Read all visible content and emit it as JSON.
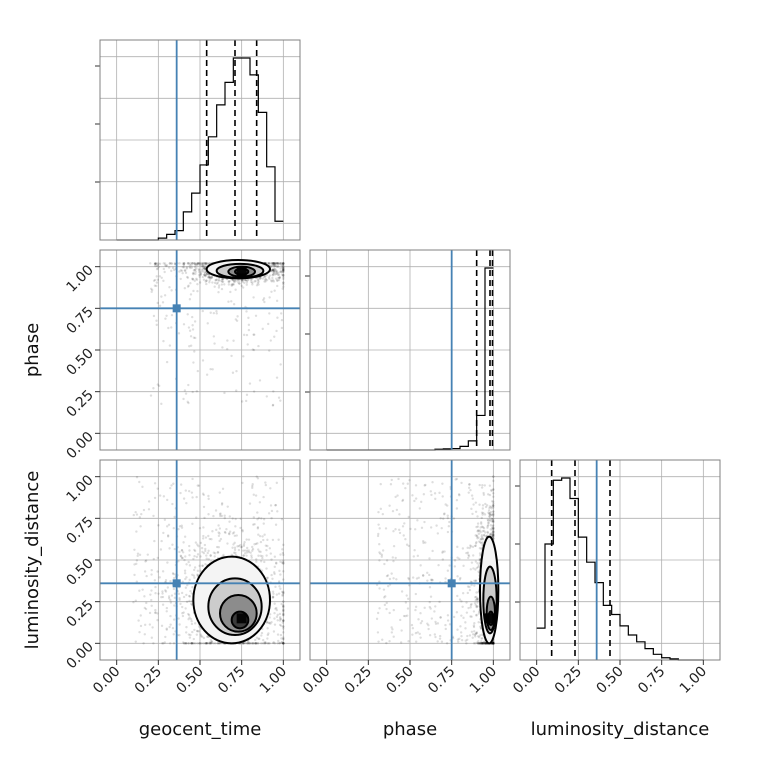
{
  "chart_data": {
    "type": "corner",
    "parameters": [
      "geocent_time",
      "phase",
      "luminosity_distance"
    ],
    "axis_ticks": [
      "0.00",
      "0.25",
      "0.50",
      "0.75",
      "1.00"
    ],
    "axis_range": [
      -0.1,
      1.1
    ],
    "truths": {
      "geocent_time": 0.36,
      "phase": 0.75,
      "luminosity_distance": 0.36
    },
    "truth_color": "#4682b4",
    "histogram_bin_edges": [
      0.0,
      0.05,
      0.1,
      0.15,
      0.2,
      0.25,
      0.3,
      0.35,
      0.4,
      0.45,
      0.5,
      0.55,
      0.6,
      0.65,
      0.7,
      0.75,
      0.8,
      0.85,
      0.9,
      0.95,
      1.0
    ],
    "histograms": {
      "geocent_time": {
        "counts": [
          0,
          0,
          0,
          0,
          0,
          1,
          3,
          5,
          15,
          25,
          40,
          55,
          72,
          84,
          97,
          97,
          88,
          68,
          39,
          10
        ],
        "quantiles": [
          0.54,
          0.71,
          0.84
        ]
      },
      "phase": {
        "counts": [
          0,
          0,
          0,
          0,
          0,
          0,
          0,
          0,
          0,
          0,
          0,
          0,
          0,
          0.4,
          0.6,
          0.8,
          2,
          5,
          19,
          100
        ],
        "quantiles": [
          0.9,
          0.98,
          0.995
        ]
      },
      "luminosity_distance": {
        "counts": [
          14,
          51,
          79,
          80,
          71,
          54,
          43,
          34,
          24,
          20,
          15,
          11,
          8,
          5,
          2.5,
          1,
          0.5,
          0,
          0,
          0
        ],
        "quantiles": [
          0.09,
          0.23,
          0.44
        ]
      }
    },
    "two_d": [
      {
        "x": "geocent_time",
        "y": "phase",
        "density_peak": [
          0.75,
          0.97
        ],
        "scatter_extent": {
          "x": [
            0.2,
            1.0
          ],
          "y": [
            0.15,
            1.02
          ]
        },
        "contour_levels": [
          0.5,
          1.0,
          1.5,
          2.0
        ],
        "contours": [
          {
            "cx": 0.73,
            "cy": 0.985,
            "rx": 0.19,
            "ry": 0.055
          },
          {
            "cx": 0.74,
            "cy": 0.975,
            "rx": 0.14,
            "ry": 0.042
          },
          {
            "cx": 0.75,
            "cy": 0.97,
            "rx": 0.08,
            "ry": 0.03
          },
          {
            "cx": 0.75,
            "cy": 0.97,
            "rx": 0.04,
            "ry": 0.018
          }
        ]
      },
      {
        "x": "geocent_time",
        "y": "luminosity_distance",
        "density_peak": [
          0.75,
          0.15
        ],
        "scatter_extent": {
          "x": [
            0.1,
            1.0
          ],
          "y": [
            0.0,
            1.0
          ]
        },
        "contour_levels": [
          0.5,
          1.0,
          1.5,
          2.0
        ],
        "contours": [
          {
            "cx": 0.69,
            "cy": 0.26,
            "rx": 0.23,
            "ry": 0.26
          },
          {
            "cx": 0.71,
            "cy": 0.22,
            "rx": 0.16,
            "ry": 0.17
          },
          {
            "cx": 0.73,
            "cy": 0.18,
            "rx": 0.11,
            "ry": 0.11
          },
          {
            "cx": 0.74,
            "cy": 0.14,
            "rx": 0.05,
            "ry": 0.05
          }
        ]
      },
      {
        "x": "phase",
        "y": "luminosity_distance",
        "density_peak": [
          0.98,
          0.15
        ],
        "scatter_extent": {
          "x": [
            0.3,
            1.0
          ],
          "y": [
            0.0,
            1.0
          ]
        },
        "contour_levels": [
          0.5,
          1.0,
          1.5,
          2.0
        ],
        "contours": [
          {
            "cx": 0.975,
            "cy": 0.32,
            "rx": 0.055,
            "ry": 0.32
          },
          {
            "cx": 0.98,
            "cy": 0.26,
            "rx": 0.04,
            "ry": 0.2
          },
          {
            "cx": 0.985,
            "cy": 0.18,
            "rx": 0.025,
            "ry": 0.1
          },
          {
            "cx": 0.985,
            "cy": 0.15,
            "rx": 0.015,
            "ry": 0.04
          }
        ]
      }
    ]
  }
}
